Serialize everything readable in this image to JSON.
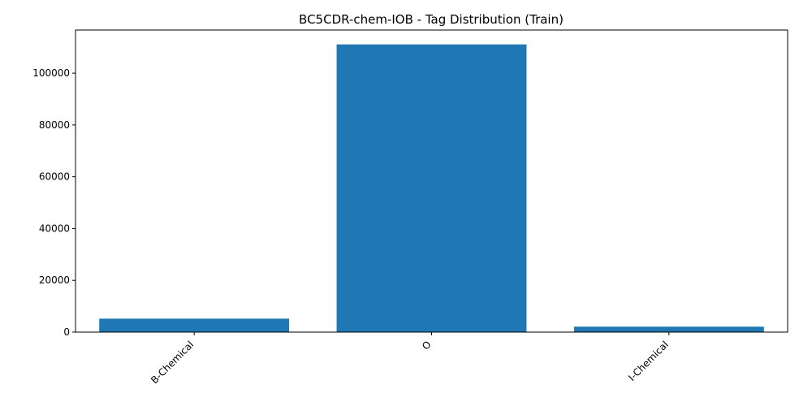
{
  "chart_data": {
    "type": "bar",
    "title": "BC5CDR-chem-IOB - Tag Distribution (Train)",
    "xlabel": "",
    "ylabel": "",
    "categories": [
      "B-Chemical",
      "O",
      "I-Chemical"
    ],
    "values": [
      5200,
      111100,
      2100
    ],
    "ylim": [
      0,
      116655
    ],
    "yticks": [
      0,
      20000,
      40000,
      60000,
      80000,
      100000
    ],
    "ytick_labels": [
      "0",
      "20000",
      "40000",
      "60000",
      "80000",
      "100000"
    ],
    "grid": false,
    "legend": "none",
    "xtick_rotation_deg": 45,
    "bar_color": "#1f77b4"
  }
}
